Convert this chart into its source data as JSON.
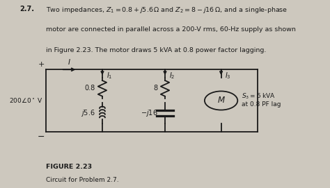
{
  "title_number": "2.7.",
  "title_text1": "Two impedances, $Z_1 = 0.8+j5.6\\,\\Omega$ and $Z_2 = 8-j16\\,\\Omega$, and a single-phase",
  "title_text2": "motor are connected in parallel across a 200-V rms, 60-Hz supply as shown",
  "title_text3": "in Figure 2.23. The motor draws 5 kVA at 0.8 power factor lagging.",
  "figure_label": "FIGURE 2.23",
  "figure_caption": "Circuit for Problem 2.7.",
  "voltage_label": "$200\\angle 0^\\circ$ V",
  "plus_label": "+",
  "minus_label": "−",
  "current_I": "$I$",
  "current_I1": "$I_1$",
  "current_I2": "$I_2$",
  "current_I3": "$I_3$",
  "z1_res": "0.8",
  "z1_ind": "$j5.6$",
  "z2_res": "8",
  "z2_cap": "$-j16$",
  "motor_label": "$M$",
  "motor_info1": "$S_3 = 5$ kVA",
  "motor_info2": "at 0.8 PF lag",
  "bg_color": "#cdc8be",
  "wire_color": "#1a1a1a",
  "text_color": "#1a1a1a",
  "ytop": 6.3,
  "ybot": 3.0,
  "xL": 1.4,
  "xZ1": 3.1,
  "xZ2": 5.0,
  "xM": 6.7,
  "xR": 7.8
}
